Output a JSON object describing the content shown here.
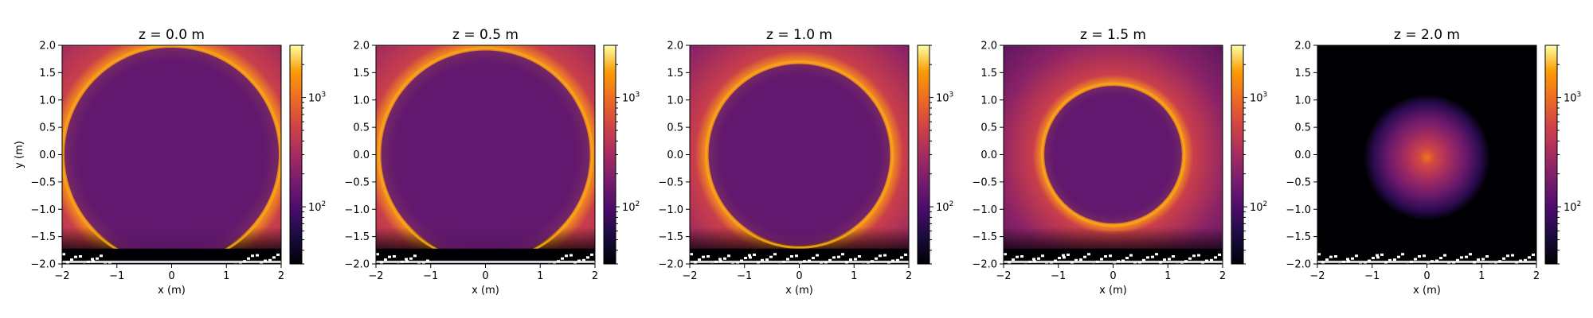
{
  "chart_data": {
    "type": "heatmap",
    "colormap": "inferno",
    "color_scale": "log",
    "xlabel": "x (m)",
    "ylabel": "y (m)",
    "xlim": [
      -2,
      2
    ],
    "ylim": [
      -2,
      2
    ],
    "xticks": [
      -2,
      -1,
      0,
      1,
      2
    ],
    "yticks": [
      2.0,
      1.5,
      1.0,
      0.5,
      0.0,
      -0.5,
      -1.0,
      -1.5,
      -2.0
    ],
    "colorbar": {
      "scale": "log",
      "range": [
        30,
        3000
      ],
      "major_ticks": [
        {
          "value": 1000,
          "base": "10",
          "exp": "3"
        },
        {
          "value": 100,
          "base": "10",
          "exp": "2"
        }
      ]
    },
    "panels": [
      {
        "title": "z = 0.0 m",
        "ring_radius_m": 2.0,
        "ring_center_y_m": 0.0
      },
      {
        "title": "z = 0.5 m",
        "ring_radius_m": 1.95,
        "ring_center_y_m": 0.0
      },
      {
        "title": "z = 1.0 m",
        "ring_radius_m": 1.7,
        "ring_center_y_m": 0.0
      },
      {
        "title": "z = 1.5 m",
        "ring_radius_m": 1.3,
        "ring_center_y_m": 0.0
      },
      {
        "title": "z = 2.0 m",
        "ring_radius_m": 0.15,
        "ring_center_y_m": -0.05
      }
    ]
  }
}
